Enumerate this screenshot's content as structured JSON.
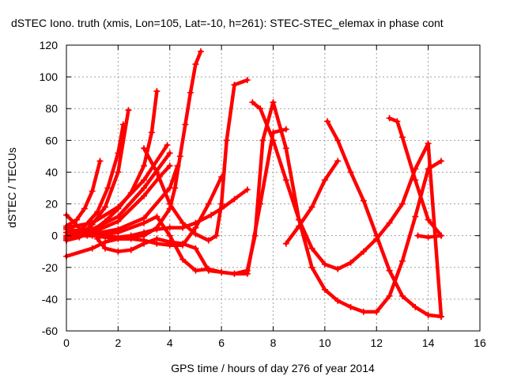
{
  "chart_data": {
    "type": "line",
    "title": "dSTEC Iono. truth (xmis, Lon=105, Lat=-10, h=261): STEC-STEC_elemax in phase cont",
    "xlabel": "GPS time / hours of day 276 of year 2014",
    "ylabel": "dSTEC  / TECUs",
    "xlim": [
      0,
      16
    ],
    "ylim": [
      -60,
      120
    ],
    "xticks": [
      0,
      2,
      4,
      6,
      8,
      10,
      12,
      14,
      16
    ],
    "yticks": [
      -60,
      -40,
      -20,
      0,
      20,
      40,
      60,
      80,
      100,
      120
    ],
    "grid": true,
    "marker": "plus",
    "color": "#ff0000",
    "series": [
      {
        "x": [
          0.0,
          0.4,
          0.7,
          1.0,
          1.3
        ],
        "y": [
          6,
          10,
          17,
          28,
          47
        ]
      },
      {
        "x": [
          0.0,
          0.6,
          1.2,
          1.6,
          2.0,
          2.2
        ],
        "y": [
          -2,
          4,
          15,
          30,
          52,
          70
        ]
      },
      {
        "x": [
          0.0,
          0.5,
          1.0,
          1.5,
          2.0,
          2.4
        ],
        "y": [
          -3,
          0,
          7,
          18,
          40,
          79
        ]
      },
      {
        "x": [
          0.0,
          0.3,
          0.6,
          0.8
        ],
        "y": [
          13,
          8,
          3,
          0
        ]
      },
      {
        "x": [
          0.0,
          0.5,
          1.0,
          1.5,
          2.0,
          2.5,
          3.0,
          3.3,
          3.5
        ],
        "y": [
          -3,
          -1,
          3,
          9,
          17,
          27,
          44,
          65,
          91
        ]
      },
      {
        "x": [
          0.0,
          1.0,
          2.0,
          3.0,
          3.9
        ],
        "y": [
          5,
          8,
          18,
          35,
          57
        ]
      },
      {
        "x": [
          0.0,
          1.0,
          2.0,
          3.0,
          4.0
        ],
        "y": [
          2,
          4,
          12,
          30,
          52
        ]
      },
      {
        "x": [
          0.0,
          1.0,
          2.0,
          3.0,
          3.6,
          4.0
        ],
        "y": [
          0,
          2,
          9,
          25,
          37,
          44
        ]
      },
      {
        "x": [
          0.0,
          1.0,
          2.0,
          3.0,
          4.0,
          4.3
        ],
        "y": [
          -1,
          1,
          4,
          11,
          30,
          44
        ]
      },
      {
        "x": [
          0.0,
          1.0,
          1.5,
          2.0,
          2.5,
          3.0,
          3.5,
          4.0,
          4.5,
          5.0,
          5.6,
          6.0,
          6.5,
          7.0
        ],
        "y": [
          4,
          2,
          0,
          -1,
          0,
          2,
          4,
          5,
          5,
          8,
          13,
          17,
          23,
          29
        ]
      },
      {
        "x": [
          0.0,
          1.0,
          2.0,
          3.0,
          3.5,
          4.0,
          4.2,
          4.4,
          4.6,
          4.8,
          5.0,
          5.2
        ],
        "y": [
          2,
          0,
          -2,
          0,
          5,
          17,
          30,
          50,
          70,
          90,
          108,
          116
        ]
      },
      {
        "x": [
          3.0,
          3.5,
          4.0,
          4.5,
          5.0,
          5.5,
          5.8,
          6.0,
          6.2,
          6.5,
          7.0
        ],
        "y": [
          55,
          40,
          20,
          8,
          1,
          -3,
          0,
          20,
          60,
          95,
          98
        ]
      },
      {
        "x": [
          0.0,
          1.0,
          1.5,
          2.0,
          2.5,
          3.0,
          3.5,
          4.0,
          4.5,
          5.0,
          5.5,
          6.0
        ],
        "y": [
          -13,
          -8,
          -4,
          -2,
          -2,
          -3,
          -5,
          -6,
          -6,
          5,
          20,
          37
        ]
      },
      {
        "x": [
          0.0,
          1.0,
          2.0,
          3.0,
          3.5,
          4.0,
          4.5,
          5.0,
          5.5,
          6.0,
          6.5,
          7.0,
          7.5,
          8.0,
          8.5
        ],
        "y": [
          0,
          0,
          2,
          8,
          12,
          0,
          -15,
          -22,
          -21,
          -23,
          -24,
          -24,
          20,
          65,
          67
        ]
      },
      {
        "x": [
          1.2,
          1.5,
          2.0,
          2.5,
          3.0,
          3.5,
          4.0,
          4.5,
          5.0,
          5.5,
          6.0,
          6.5,
          7.0,
          7.3,
          7.6,
          8.0,
          8.5,
          9.0,
          9.5,
          10.0,
          10.5,
          11.0,
          11.5,
          12.0,
          12.5,
          13.0,
          13.5,
          14.0,
          14.5
        ],
        "y": [
          -2,
          -8,
          -10,
          -9,
          -5,
          -2,
          -4,
          -5,
          -8,
          -22,
          -23,
          -24,
          -22,
          0,
          60,
          84,
          55,
          10,
          -20,
          -34,
          -41,
          -45,
          -48,
          -48,
          -38,
          -16,
          12,
          42,
          47
        ]
      },
      {
        "x": [
          7.2,
          7.5,
          8.0,
          8.5,
          9.0,
          9.5,
          10.0,
          10.5,
          11.0,
          11.5,
          12.0,
          12.5,
          13.0,
          13.5,
          14.0,
          14.5
        ],
        "y": [
          84,
          80,
          60,
          35,
          10,
          -8,
          -18,
          -21,
          -17,
          -10,
          -2,
          8,
          20,
          42,
          58,
          -51
        ]
      },
      {
        "x": [
          8.5,
          9.0,
          9.5,
          10.0,
          10.5
        ],
        "y": [
          -5,
          6,
          18,
          35,
          47
        ]
      },
      {
        "x": [
          10.1,
          10.5,
          11.0,
          11.5,
          12.0,
          12.5,
          13.0,
          13.5,
          14.0,
          14.5
        ],
        "y": [
          72,
          60,
          40,
          22,
          0,
          -22,
          -38,
          -45,
          -50,
          -51
        ]
      },
      {
        "x": [
          12.5,
          12.8,
          13.0,
          13.5,
          14.0,
          14.5
        ],
        "y": [
          74,
          72,
          62,
          35,
          10,
          0
        ]
      },
      {
        "x": [
          13.6,
          14.0,
          14.5
        ],
        "y": [
          0,
          -1,
          0
        ]
      }
    ]
  }
}
